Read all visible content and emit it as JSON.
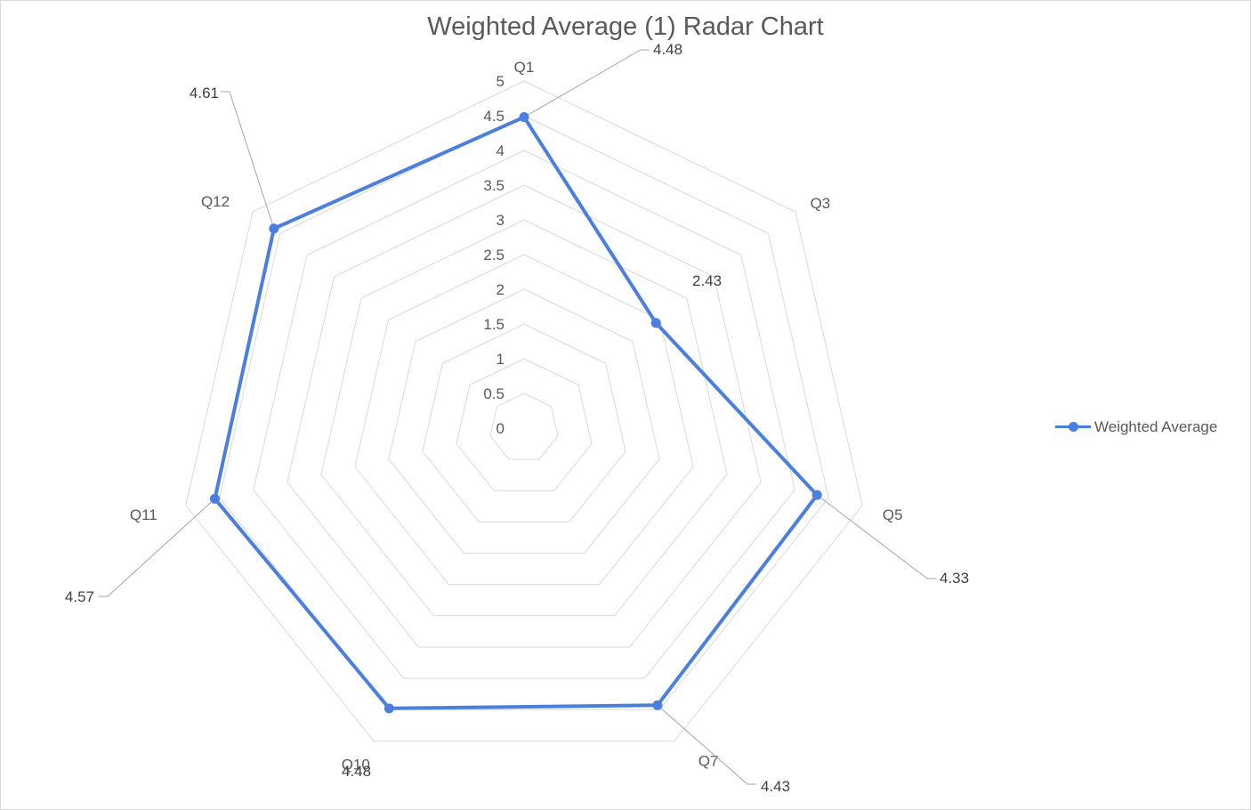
{
  "chart_data": {
    "type": "radar",
    "title": "Weighted Average (1) Radar Chart",
    "categories": [
      "Q1",
      "Q3",
      "Q5",
      "Q7",
      "Q10",
      "Q11",
      "Q12"
    ],
    "series": [
      {
        "name": "Weighted Average",
        "values": [
          4.48,
          2.43,
          4.33,
          4.43,
          4.48,
          4.57,
          4.61
        ]
      }
    ],
    "data_labels": [
      "4.48",
      "2.43",
      "4.33",
      "4.43",
      "4.48",
      "4.57",
      "4.61"
    ],
    "radial_ticks": [
      "0",
      "0.5",
      "1",
      "1.5",
      "2",
      "2.5",
      "3",
      "3.5",
      "4",
      "4.5",
      "5"
    ],
    "rmin": 0,
    "rmax": 5,
    "grid": true,
    "legend_position": "right",
    "colors": {
      "series": "#4a7fe0",
      "grid": "#d9d9d9",
      "text": "#595959",
      "label": "#404040"
    }
  }
}
